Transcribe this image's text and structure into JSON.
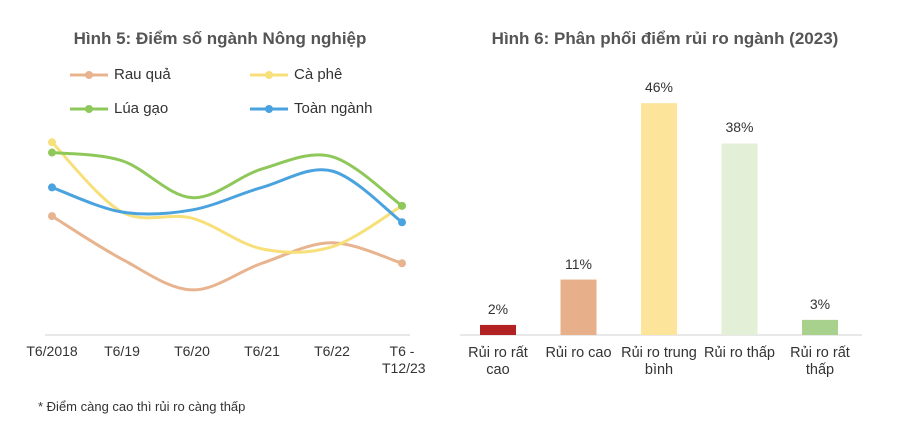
{
  "chart_data": [
    {
      "type": "line",
      "title": "Hình 5: Điểm số ngành Nông nghiệp",
      "categories": [
        "T6/2018",
        "T6/19",
        "T6/20",
        "T6/21",
        "T6/22",
        "T6 - T12/23"
      ],
      "series": [
        {
          "name": "Rau quả",
          "color": "#e8b48f",
          "values": [
            58,
            37,
            22,
            35,
            45,
            35
          ]
        },
        {
          "name": "Cà phê",
          "color": "#f7df7a",
          "values": [
            94,
            60,
            57,
            42,
            43,
            63
          ]
        },
        {
          "name": "Lúa gạo",
          "color": "#8fc85a",
          "values": [
            89,
            85,
            67,
            81,
            87,
            63
          ]
        },
        {
          "name": "Toàn ngành",
          "color": "#4aa3df",
          "values": [
            72,
            60,
            61,
            72,
            80,
            55
          ]
        }
      ],
      "ylim": [
        0,
        100
      ],
      "footnote": "* Điểm càng cao thì rủi ro càng thấp"
    },
    {
      "type": "bar",
      "title": "Hình 6: Phân phối điểm rủi ro ngành (2023)",
      "categories": [
        "Rủi ro rất cao",
        "Rủi ro cao",
        "Rủi ro trung bình",
        "Rủi ro thấp",
        "Rủi ro rất thấp"
      ],
      "values": [
        2,
        11,
        46,
        38,
        3
      ],
      "value_labels": [
        "2%",
        "11%",
        "46%",
        "38%",
        "3%"
      ],
      "colors": [
        "#b22222",
        "#e8b08a",
        "#fce49a",
        "#e4efd8",
        "#a9d18e"
      ],
      "ylim": [
        0,
        50
      ]
    }
  ]
}
